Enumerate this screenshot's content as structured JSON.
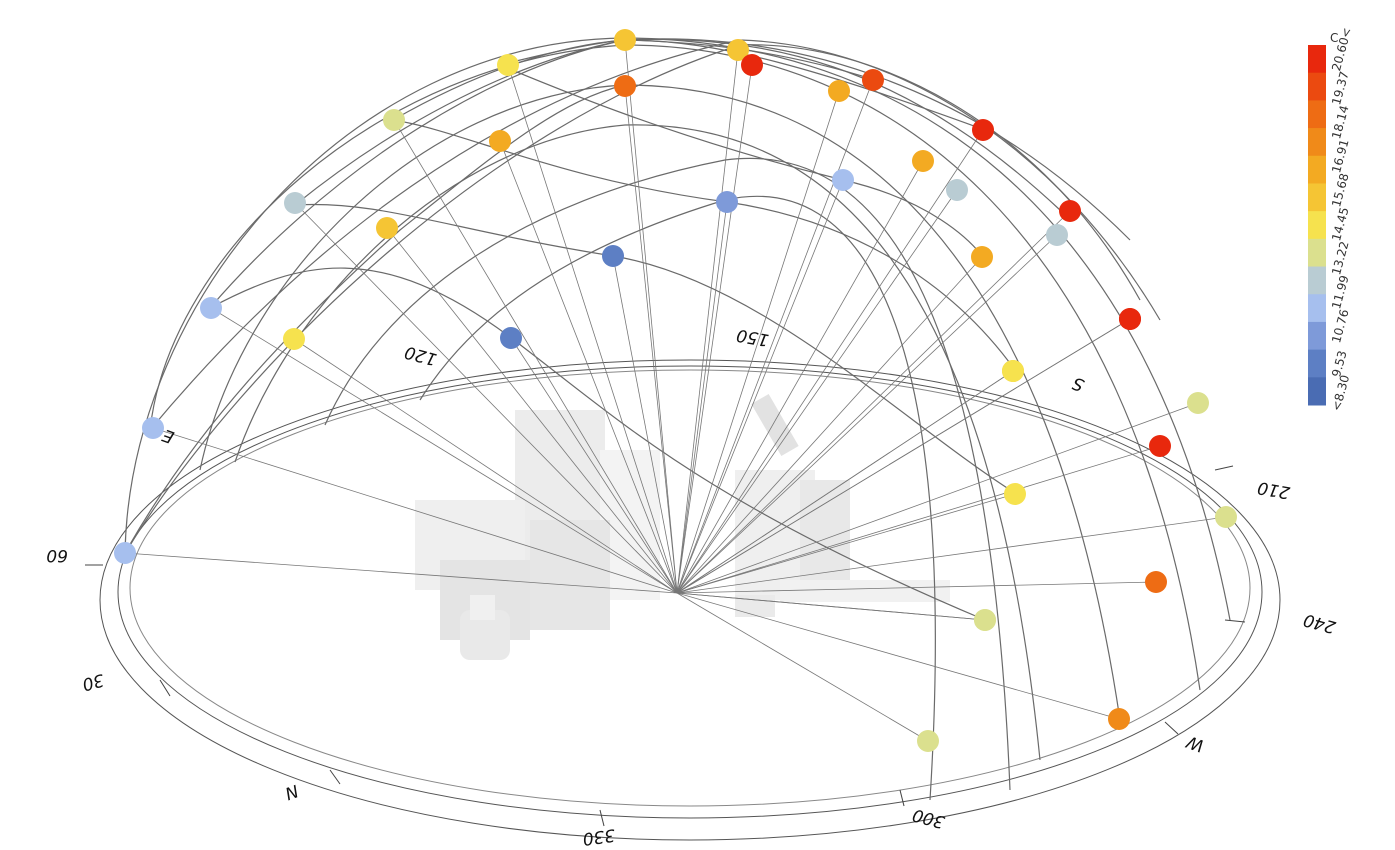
{
  "legend": {
    "unit": "C",
    "labels": [
      "20.60<",
      "19.37",
      "18.14",
      "16.91",
      "15.68",
      "14.45",
      "13.22",
      "11.99",
      "10.76",
      "9.53",
      "<8.30"
    ],
    "colors": [
      "#e8280d",
      "#eb4a10",
      "#ee6c14",
      "#f08a19",
      "#f3aa22",
      "#f5c534",
      "#f6e24e",
      "#dbe08e",
      "#b9ccd3",
      "#a6bfee",
      "#7e9ad9",
      "#5d7fc4",
      "#4a6cb3"
    ]
  },
  "compass": {
    "north": "N",
    "south": "S",
    "east": "E",
    "west": "W",
    "degrees": [
      "30",
      "60",
      "120",
      "150",
      "210",
      "240",
      "300",
      "330"
    ]
  },
  "sun_points": [
    {
      "color": "#a6bfee"
    },
    {
      "color": "#a6bfee"
    },
    {
      "color": "#a6bfee"
    },
    {
      "color": "#b9ccd3"
    },
    {
      "color": "#dbe08e"
    },
    {
      "color": "#f6e24e"
    },
    {
      "color": "#f5c534"
    },
    {
      "color": "#f5c534"
    },
    {
      "color": "#f6e24e"
    },
    {
      "color": "#f5c534"
    },
    {
      "color": "#f3aa22"
    },
    {
      "color": "#ee6c14"
    },
    {
      "color": "#f3aa22"
    },
    {
      "color": "#e8280d"
    },
    {
      "color": "#f3aa22"
    },
    {
      "color": "#eb4a10"
    },
    {
      "color": "#f3aa22"
    },
    {
      "color": "#e8280d"
    },
    {
      "color": "#e8280d"
    },
    {
      "color": "#e8280d"
    },
    {
      "color": "#b9ccd3"
    },
    {
      "color": "#b9ccd3"
    },
    {
      "color": "#5d7fc4"
    },
    {
      "color": "#5d7fc4"
    },
    {
      "color": "#7e9ad9"
    },
    {
      "color": "#a6bfee"
    },
    {
      "color": "#f5c534"
    },
    {
      "color": "#f6e24e"
    },
    {
      "color": "#f6e24e"
    },
    {
      "color": "#dbe08e"
    },
    {
      "color": "#dbe08e"
    },
    {
      "color": "#dbe08e"
    },
    {
      "color": "#e8280d"
    },
    {
      "color": "#e8280d"
    },
    {
      "color": "#ee6c14"
    },
    {
      "color": "#f08a19"
    },
    {
      "color": "#dbe08e"
    },
    {
      "color": "#dbe08e"
    }
  ]
}
